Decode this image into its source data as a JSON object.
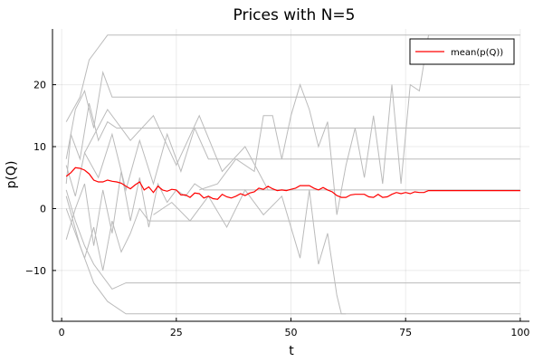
{
  "chart_data": {
    "type": "line",
    "title": "Prices with N=5",
    "xlabel": "t",
    "ylabel": "p(Q)",
    "xlim": [
      -2,
      102
    ],
    "ylim": [
      -18.2,
      29
    ],
    "xticks": [
      0,
      25,
      50,
      75,
      100
    ],
    "yticks": [
      -10,
      0,
      10,
      20
    ],
    "grid": true,
    "legend_position": "top-right",
    "colors": {
      "mean": "#ff0000",
      "paths": "#bbbbbb"
    },
    "mean_series": {
      "name": "mean(p(Q))",
      "x": [
        1,
        2,
        3,
        4,
        5,
        6,
        7,
        8,
        9,
        10,
        11,
        12,
        13,
        14,
        15,
        16,
        17,
        18,
        19,
        20,
        21,
        22,
        23,
        24,
        25,
        26,
        27,
        28,
        29,
        30,
        31,
        32,
        33,
        34,
        35,
        36,
        37,
        38,
        39,
        40,
        41,
        42,
        43,
        44,
        45,
        46,
        47,
        48,
        49,
        50,
        51,
        52,
        53,
        54,
        55,
        56,
        57,
        58,
        59,
        60,
        61,
        62,
        63,
        64,
        65,
        66,
        67,
        68,
        69,
        70,
        71,
        72,
        73,
        74,
        75,
        76,
        77,
        78,
        79,
        80,
        100
      ],
      "y": [
        5.2,
        5.8,
        6.6,
        6.5,
        6.2,
        5.6,
        4.6,
        4.3,
        4.3,
        4.6,
        4.4,
        4.3,
        4.1,
        3.6,
        3.2,
        3.8,
        4.3,
        3.0,
        3.5,
        2.6,
        3.6,
        3.0,
        2.8,
        3.1,
        3.0,
        2.2,
        2.2,
        1.8,
        2.5,
        2.4,
        1.7,
        2.0,
        1.6,
        1.5,
        2.3,
        1.9,
        1.7,
        2.0,
        2.4,
        2.1,
        2.5,
        2.7,
        3.3,
        3.1,
        3.6,
        3.2,
        2.9,
        3.0,
        2.9,
        3.1,
        3.3,
        3.7,
        3.7,
        3.7,
        3.3,
        3.0,
        3.4,
        3.0,
        2.7,
        2.1,
        1.8,
        1.8,
        2.2,
        2.3,
        2.3,
        2.3,
        1.9,
        1.8,
        2.3,
        1.8,
        1.9,
        2.3,
        2.6,
        2.4,
        2.6,
        2.4,
        2.7,
        2.6,
        2.6,
        2.9,
        2.9
      ]
    },
    "price_paths": [
      {
        "x": [
          1,
          4,
          6,
          8,
          10,
          100
        ],
        "y": [
          14,
          18,
          24,
          26,
          28,
          28
        ]
      },
      {
        "x": [
          1,
          3,
          5,
          7,
          9,
          11,
          100
        ],
        "y": [
          8,
          16,
          19,
          13,
          22,
          18,
          18
        ]
      },
      {
        "x": [
          1,
          2,
          4,
          6,
          8,
          10,
          12,
          100
        ],
        "y": [
          4,
          12,
          8,
          17,
          11,
          14,
          13,
          13
        ]
      },
      {
        "x": [
          1,
          3,
          5,
          8,
          11,
          14,
          17,
          20,
          23,
          26,
          29,
          32,
          100
        ],
        "y": [
          7,
          2,
          9,
          5,
          12,
          3,
          11,
          4,
          12,
          6,
          13,
          8,
          8
        ]
      },
      {
        "x": [
          1,
          3,
          5,
          7,
          9,
          11,
          13,
          15,
          17,
          19,
          21,
          23,
          25,
          27,
          29,
          31,
          100
        ],
        "y": [
          -5,
          0,
          4,
          -6,
          3,
          -4,
          6,
          -2,
          5,
          -3,
          4,
          1,
          3,
          2,
          4,
          3,
          3
        ]
      },
      {
        "x": [
          1,
          3,
          5,
          7,
          9,
          11,
          13,
          15,
          17,
          19,
          21,
          100
        ],
        "y": [
          0,
          -4,
          -8,
          -3,
          -10,
          -2,
          -7,
          -4,
          0,
          -2,
          -2,
          -2
        ]
      },
      {
        "x": [
          1,
          3,
          5,
          7,
          9,
          11,
          14,
          100
        ],
        "y": [
          3,
          -2,
          -6,
          -9,
          -11,
          -13,
          -12,
          -12
        ]
      },
      {
        "x": [
          1,
          4,
          7,
          10,
          14,
          18,
          100
        ],
        "y": [
          2,
          -6,
          -12,
          -15,
          -17,
          -17,
          -17
        ]
      },
      {
        "x": [
          30,
          34,
          38,
          42,
          44,
          46,
          48,
          50,
          52,
          54,
          56,
          58,
          60,
          62,
          64,
          66,
          68,
          70,
          72,
          74,
          76,
          78,
          80,
          100
        ],
        "y": [
          3,
          4,
          8,
          6,
          15,
          15,
          8,
          15,
          20,
          16,
          10,
          14,
          -1,
          7,
          13,
          5,
          15,
          4,
          20,
          4,
          20,
          19,
          28,
          28
        ]
      },
      {
        "x": [
          20,
          24,
          28,
          32,
          36,
          40,
          44,
          48,
          52,
          54,
          56,
          58,
          60,
          61,
          62
        ],
        "y": [
          -1,
          1,
          -2,
          2,
          -3,
          3,
          -1,
          2,
          -8,
          3,
          -9,
          -4,
          -14,
          -17,
          -17
        ]
      },
      {
        "x": [
          5,
          10,
          15,
          20,
          25,
          30,
          35,
          40,
          45,
          50
        ],
        "y": [
          9,
          16,
          11,
          15,
          7,
          15,
          6,
          10,
          3,
          3
        ]
      }
    ]
  }
}
